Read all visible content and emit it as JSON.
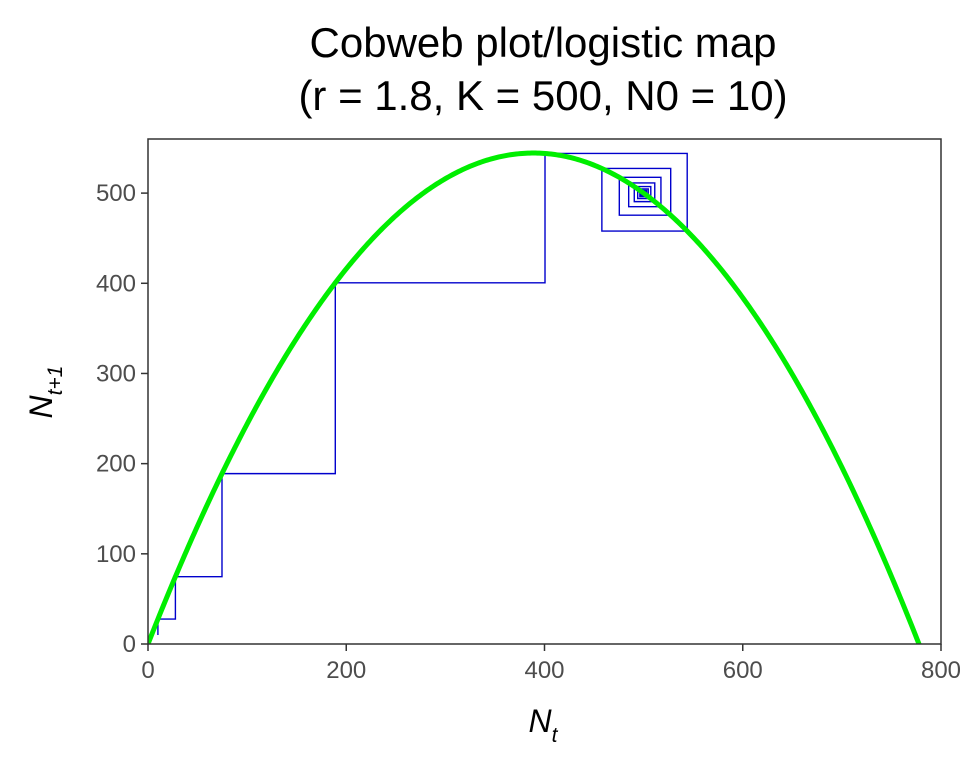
{
  "chart_data": {
    "type": "line",
    "title_lines": [
      "Cobweb plot/logistic map",
      "(r = 1.8, K = 500, N0 = 10)"
    ],
    "parameters": {
      "r": 1.8,
      "K": 500,
      "N0": 10
    },
    "xlabel": {
      "main": "N",
      "sub": "t"
    },
    "ylabel": {
      "main": "N",
      "sub": "t+1"
    },
    "xlim": [
      0,
      800
    ],
    "ylim": [
      0,
      560
    ],
    "x_ticks": [
      0,
      200,
      400,
      600,
      800
    ],
    "y_ticks": [
      0,
      100,
      200,
      300,
      400,
      500
    ],
    "grid": false,
    "legend": "none",
    "series": [
      {
        "kind": "logistic-curve",
        "color": "#00ee00",
        "x_range": [
          0,
          778
        ]
      },
      {
        "kind": "cobweb",
        "color": "#0000cc",
        "iterations": 60
      }
    ]
  }
}
